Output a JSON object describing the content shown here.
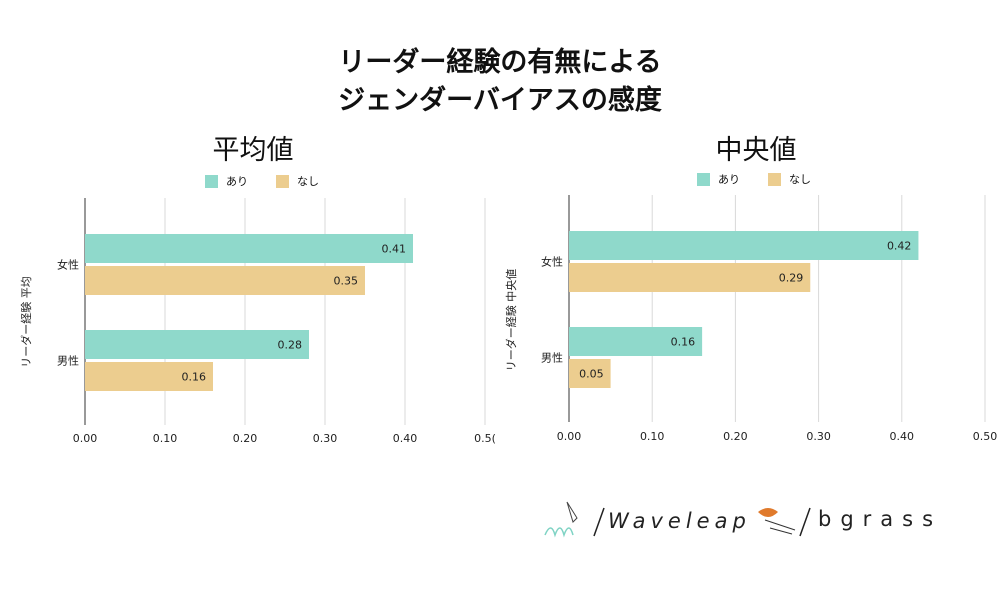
{
  "title_line1": "リーダー経験の有無による",
  "title_line2": "ジェンダーバイアスの感度",
  "legend": [
    {
      "label": "あり",
      "color": "#8fd9cb"
    },
    {
      "label": "なし",
      "color": "#eccd8f"
    }
  ],
  "chart_data": [
    {
      "type": "bar",
      "orientation": "horizontal",
      "title": "平均値",
      "ylabel": "リーダー経験 平均",
      "categories": [
        "女性",
        "男性"
      ],
      "series": [
        {
          "name": "あり",
          "values": [
            0.41,
            0.28
          ],
          "labels": [
            "0.41",
            "0.28"
          ]
        },
        {
          "name": "なし",
          "values": [
            0.35,
            0.16
          ],
          "labels": [
            "0.35",
            "0.16"
          ]
        }
      ],
      "xlim": [
        0,
        0.5
      ],
      "xticks": [
        "0.00",
        "0.10",
        "0.20",
        "0.30",
        "0.40",
        "0.5("
      ]
    },
    {
      "type": "bar",
      "orientation": "horizontal",
      "title": "中央値",
      "ylabel": "リーダー経験 中央値",
      "categories": [
        "女性",
        "男性"
      ],
      "series": [
        {
          "name": "あり",
          "values": [
            0.42,
            0.16
          ],
          "labels": [
            "0.42",
            "0.16"
          ]
        },
        {
          "name": "なし",
          "values": [
            0.29,
            0.05
          ],
          "labels": [
            "0.29",
            "0.05"
          ]
        }
      ],
      "xlim": [
        0,
        0.5
      ],
      "xticks": [
        "0.00",
        "0.10",
        "0.20",
        "0.30",
        "0.40",
        "0.50"
      ]
    }
  ],
  "logos": {
    "left": "Waveleap",
    "right": "bgrass"
  }
}
